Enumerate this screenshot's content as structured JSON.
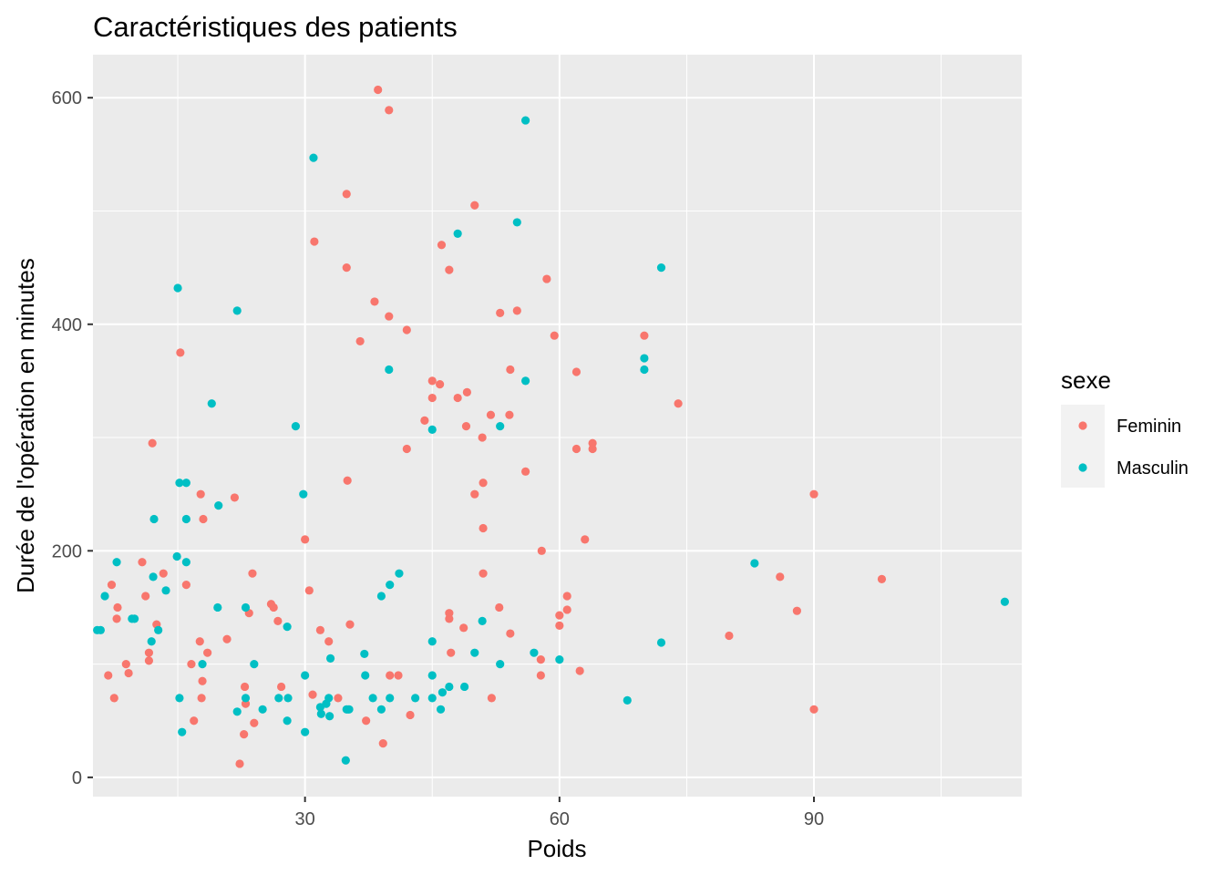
{
  "chart_data": {
    "type": "scatter",
    "title": "Caractéristiques des patients",
    "xlabel": "Poids",
    "ylabel": "Durée de l'opération en minutes",
    "xlim": [
      5,
      114.5
    ],
    "ylim": [
      -17,
      638
    ],
    "x_ticks": [
      30,
      60,
      90
    ],
    "y_ticks": [
      0,
      200,
      400,
      600
    ],
    "x_minor_ticks": [
      15,
      45,
      75,
      105
    ],
    "y_minor_ticks": [
      100,
      300,
      500
    ],
    "grid": true,
    "legend_position": "right",
    "legend_title": "sexe",
    "series": [
      {
        "name": "Feminin",
        "color": "#F8766D",
        "points": [
          [
            6.8,
            90
          ],
          [
            7.2,
            170
          ],
          [
            7.5,
            70
          ],
          [
            7.8,
            140
          ],
          [
            7.9,
            150
          ],
          [
            8.9,
            100
          ],
          [
            9.2,
            92
          ],
          [
            10.8,
            190
          ],
          [
            11.2,
            160
          ],
          [
            11.6,
            103
          ],
          [
            11.6,
            110
          ],
          [
            12,
            295
          ],
          [
            12.5,
            135
          ],
          [
            13.3,
            180
          ],
          [
            15.3,
            375
          ],
          [
            16,
            170
          ],
          [
            16.6,
            100
          ],
          [
            16.9,
            50
          ],
          [
            17.6,
            120
          ],
          [
            17.7,
            250
          ],
          [
            17.8,
            70
          ],
          [
            17.9,
            85
          ],
          [
            18,
            228
          ],
          [
            18.5,
            110
          ],
          [
            20.8,
            122
          ],
          [
            21.7,
            247
          ],
          [
            22.3,
            12
          ],
          [
            22.8,
            38
          ],
          [
            22.9,
            80
          ],
          [
            23,
            65
          ],
          [
            23.4,
            145
          ],
          [
            23.8,
            180
          ],
          [
            24,
            48
          ],
          [
            26,
            153
          ],
          [
            26.3,
            150
          ],
          [
            26.8,
            138
          ],
          [
            27.2,
            80
          ],
          [
            30,
            210
          ],
          [
            30.5,
            165
          ],
          [
            30.9,
            73
          ],
          [
            31.1,
            473
          ],
          [
            31.8,
            130
          ],
          [
            32.8,
            120
          ],
          [
            33.9,
            70
          ],
          [
            34.9,
            515
          ],
          [
            34.9,
            450
          ],
          [
            35,
            262
          ],
          [
            35.3,
            135
          ],
          [
            36.5,
            385
          ],
          [
            37.2,
            50
          ],
          [
            38.2,
            420
          ],
          [
            38.6,
            607
          ],
          [
            39.2,
            30
          ],
          [
            39.9,
            589
          ],
          [
            39.9,
            407
          ],
          [
            40,
            90
          ],
          [
            41,
            90
          ],
          [
            42,
            395
          ],
          [
            42,
            290
          ],
          [
            42.4,
            55
          ],
          [
            44.1,
            315
          ],
          [
            45,
            350
          ],
          [
            45,
            335
          ],
          [
            45.9,
            347
          ],
          [
            46.1,
            470
          ],
          [
            47,
            448
          ],
          [
            47,
            145
          ],
          [
            47,
            140
          ],
          [
            47.2,
            110
          ],
          [
            48,
            335
          ],
          [
            48.7,
            132
          ],
          [
            49,
            310
          ],
          [
            49.1,
            340
          ],
          [
            50,
            505
          ],
          [
            50,
            250
          ],
          [
            50.9,
            300
          ],
          [
            51,
            220
          ],
          [
            51,
            180
          ],
          [
            51,
            260
          ],
          [
            51.9,
            320
          ],
          [
            52,
            70
          ],
          [
            52.9,
            150
          ],
          [
            53,
            410
          ],
          [
            54.1,
            320
          ],
          [
            54.2,
            360
          ],
          [
            54.2,
            127
          ],
          [
            55,
            412
          ],
          [
            56,
            270
          ],
          [
            57.8,
            90
          ],
          [
            57.8,
            104
          ],
          [
            57.9,
            200
          ],
          [
            58.5,
            440
          ],
          [
            59.4,
            390
          ],
          [
            60,
            143
          ],
          [
            60,
            134
          ],
          [
            60.9,
            148
          ],
          [
            60.9,
            160
          ],
          [
            62,
            290
          ],
          [
            62,
            358
          ],
          [
            62.4,
            94
          ],
          [
            63,
            210
          ],
          [
            63.9,
            295
          ],
          [
            63.9,
            290
          ],
          [
            70,
            390
          ],
          [
            74,
            330
          ],
          [
            80,
            125
          ],
          [
            86,
            177
          ],
          [
            88,
            147
          ],
          [
            90,
            250
          ],
          [
            90,
            60
          ],
          [
            98,
            175
          ]
        ]
      },
      {
        "name": "Masculin",
        "color": "#00BFC4",
        "points": [
          [
            5.5,
            130
          ],
          [
            5.9,
            130
          ],
          [
            6.4,
            160
          ],
          [
            7.8,
            190
          ],
          [
            9.6,
            140
          ],
          [
            9.9,
            140
          ],
          [
            11.9,
            120
          ],
          [
            12.1,
            177
          ],
          [
            12.2,
            228
          ],
          [
            12.7,
            130
          ],
          [
            13.6,
            165
          ],
          [
            14.9,
            195
          ],
          [
            15,
            432
          ],
          [
            15.2,
            70
          ],
          [
            15.2,
            260
          ],
          [
            15.5,
            40
          ],
          [
            16,
            260
          ],
          [
            16,
            190
          ],
          [
            16,
            228
          ],
          [
            17.9,
            100
          ],
          [
            19,
            330
          ],
          [
            19.7,
            150
          ],
          [
            19.8,
            240
          ],
          [
            22,
            58
          ],
          [
            22,
            412
          ],
          [
            23,
            150
          ],
          [
            23,
            70
          ],
          [
            24,
            100
          ],
          [
            25,
            60
          ],
          [
            26.9,
            70
          ],
          [
            27.9,
            133
          ],
          [
            27.9,
            50
          ],
          [
            28,
            70
          ],
          [
            28.9,
            310
          ],
          [
            29.8,
            250
          ],
          [
            30,
            40
          ],
          [
            30,
            90
          ],
          [
            31,
            547
          ],
          [
            31.8,
            62
          ],
          [
            31.9,
            56
          ],
          [
            32.5,
            65
          ],
          [
            32.8,
            70
          ],
          [
            32.9,
            54
          ],
          [
            33,
            105
          ],
          [
            34.8,
            15
          ],
          [
            34.9,
            60
          ],
          [
            35.2,
            60
          ],
          [
            37,
            109
          ],
          [
            37.1,
            90
          ],
          [
            38,
            70
          ],
          [
            39,
            160
          ],
          [
            39,
            60
          ],
          [
            39.9,
            360
          ],
          [
            40,
            170
          ],
          [
            40,
            70
          ],
          [
            41.1,
            180
          ],
          [
            43,
            70
          ],
          [
            45,
            307
          ],
          [
            45,
            120
          ],
          [
            45,
            90
          ],
          [
            45,
            70
          ],
          [
            46,
            60
          ],
          [
            46.2,
            75
          ],
          [
            47,
            80
          ],
          [
            48,
            480
          ],
          [
            48.8,
            80
          ],
          [
            50,
            110
          ],
          [
            50.9,
            138
          ],
          [
            53,
            310
          ],
          [
            53,
            100
          ],
          [
            55,
            490
          ],
          [
            56,
            580
          ],
          [
            56,
            350
          ],
          [
            57,
            110
          ],
          [
            60,
            104
          ],
          [
            68,
            68
          ],
          [
            70,
            370
          ],
          [
            70,
            360
          ],
          [
            72,
            450
          ],
          [
            72,
            119
          ],
          [
            83,
            189
          ],
          [
            112.5,
            155
          ]
        ]
      }
    ]
  }
}
